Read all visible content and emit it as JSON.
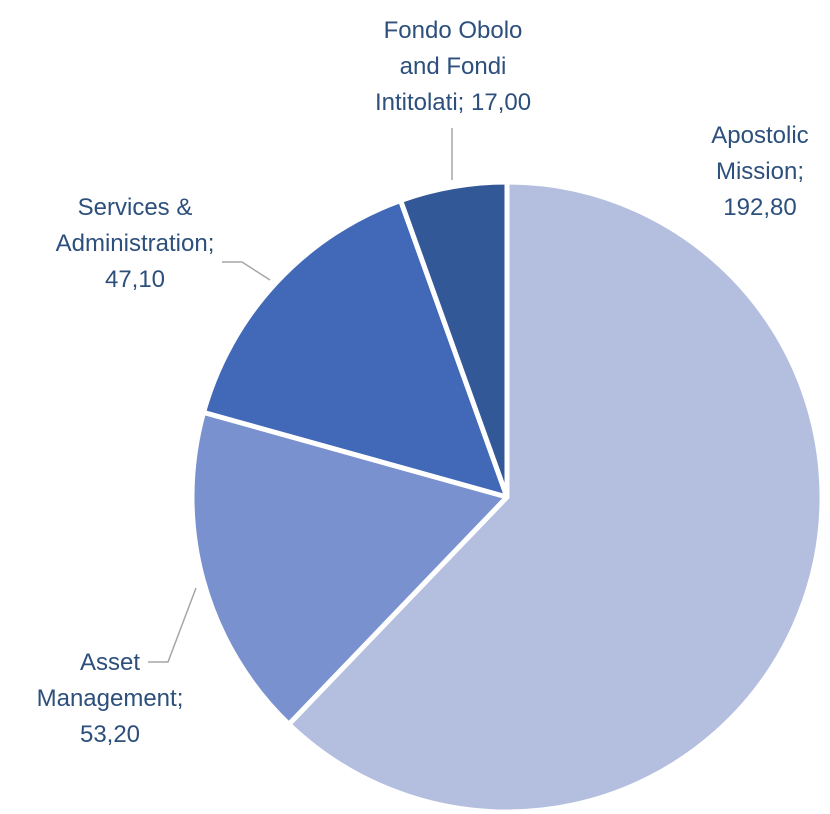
{
  "chart_data": {
    "type": "pie",
    "categories": [
      "Apostolic Mission;",
      "Asset Management;",
      "Services & Administration;",
      "Fondo Obolo and Fondi Intitolati;"
    ],
    "values": [
      192.8,
      53.2,
      47.1,
      17.0
    ],
    "value_labels": [
      "192,80",
      "53,20",
      "47,10",
      "17,00"
    ],
    "colors": [
      "#b4bedf",
      "#7a91cf",
      "#4169b8",
      "#335898"
    ]
  }
}
